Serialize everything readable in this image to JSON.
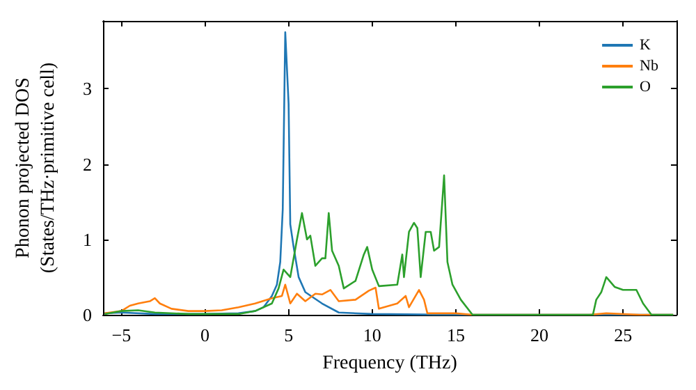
{
  "chart_data": {
    "type": "line",
    "xlabel": "Frequency (THz)",
    "ylabel": "Phonon projected DOS\n(States/THz·primitive cell)",
    "xlim": [
      -6.1,
      28.2
    ],
    "ylim": [
      0,
      3.9
    ],
    "xticks": [
      -5,
      0,
      5,
      10,
      15,
      20,
      25
    ],
    "yticks": [
      0,
      1,
      2,
      3
    ],
    "grid": false,
    "legend": "top right",
    "marker": "none",
    "line_style": "solid",
    "series": [
      {
        "name": "K",
        "color": "#1f77b4",
        "x": [
          -6,
          -5,
          -3,
          0,
          2,
          3,
          3.5,
          4,
          4.3,
          4.5,
          4.65,
          4.8,
          5.0,
          5.1,
          5.3,
          5.6,
          6,
          7,
          8,
          10,
          15,
          28
        ],
        "values": [
          0.02,
          0.03,
          0.01,
          0.01,
          0.02,
          0.05,
          0.1,
          0.25,
          0.4,
          0.7,
          1.4,
          3.75,
          2.8,
          1.2,
          0.9,
          0.5,
          0.3,
          0.15,
          0.03,
          0.01,
          0,
          0
        ]
      },
      {
        "name": "Nb",
        "color": "#ff7f0e",
        "x": [
          -6,
          -5,
          -4.5,
          -4,
          -3.3,
          -3,
          -2.7,
          -2,
          -1,
          0,
          1,
          2,
          3,
          4,
          4.6,
          4.8,
          5.1,
          5.5,
          6,
          6.6,
          7,
          7.5,
          8,
          9,
          9.8,
          10.2,
          10.4,
          11.5,
          12,
          12.2,
          12.8,
          13.1,
          13.3,
          15,
          16,
          23,
          24,
          26,
          28
        ],
        "values": [
          0.02,
          0.05,
          0.12,
          0.15,
          0.18,
          0.22,
          0.15,
          0.08,
          0.05,
          0.05,
          0.06,
          0.1,
          0.15,
          0.22,
          0.25,
          0.4,
          0.15,
          0.28,
          0.18,
          0.28,
          0.27,
          0.33,
          0.18,
          0.2,
          0.32,
          0.36,
          0.08,
          0.15,
          0.25,
          0.1,
          0.33,
          0.2,
          0.02,
          0.02,
          0,
          0,
          0.02,
          0,
          0
        ]
      },
      {
        "name": "O",
        "color": "#2ca02c",
        "x": [
          -6,
          -5,
          -4,
          -3,
          -1,
          2,
          3,
          4,
          4.4,
          4.7,
          5.1,
          5.5,
          5.8,
          6.1,
          6.3,
          6.6,
          7,
          7.2,
          7.4,
          7.6,
          8,
          8.3,
          9,
          9.5,
          9.7,
          10,
          10.4,
          11.5,
          11.8,
          11.9,
          12.2,
          12.5,
          12.7,
          12.9,
          13.2,
          13.5,
          13.7,
          14,
          14.3,
          14.5,
          14.8,
          15.3,
          16,
          23.2,
          23.4,
          23.7,
          24,
          24.5,
          25,
          25.8,
          26.2,
          26.7,
          28
        ],
        "values": [
          0.01,
          0.05,
          0.06,
          0.03,
          0.01,
          0.01,
          0.05,
          0.15,
          0.35,
          0.6,
          0.5,
          1.0,
          1.35,
          1.0,
          1.05,
          0.65,
          0.75,
          0.75,
          1.35,
          0.85,
          0.65,
          0.35,
          0.45,
          0.8,
          0.9,
          0.6,
          0.38,
          0.4,
          0.8,
          0.5,
          1.1,
          1.22,
          1.15,
          0.5,
          1.1,
          1.1,
          0.85,
          0.9,
          1.85,
          0.7,
          0.4,
          0.2,
          0,
          0,
          0.2,
          0.3,
          0.5,
          0.37,
          0.33,
          0.33,
          0.15,
          0,
          0
        ]
      }
    ]
  }
}
